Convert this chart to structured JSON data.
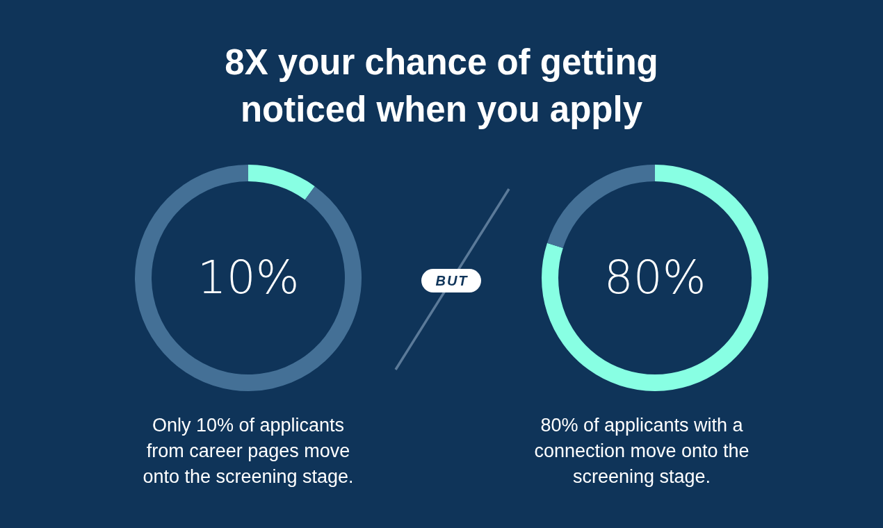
{
  "chart_data": [
    {
      "type": "donut",
      "title": "8X your chance of getting noticed when you apply",
      "categories": [
        null,
        null
      ],
      "values": [
        10,
        90
      ],
      "colors": [
        "#88ffe3",
        "#447096"
      ],
      "value_labels": [
        "10%",
        null
      ],
      "annotations": [
        "Only 10% of applicants from career pages move onto the screening stage."
      ]
    },
    {
      "type": "other",
      "annotations": [
        "BUT"
      ]
    },
    {
      "type": "donut",
      "categories": [
        null,
        null
      ],
      "values": [
        80,
        20
      ],
      "colors": [
        "#88ffe3",
        "#447096"
      ],
      "value_labels": [
        "80%",
        null
      ],
      "annotations": [
        "80% of applicants with a connection move onto the screening stage."
      ]
    }
  ]
}
